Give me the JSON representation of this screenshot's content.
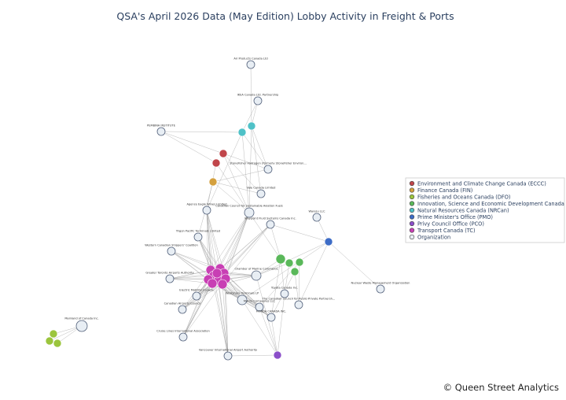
{
  "title": "QSA's April 2026 Data (May Edition) Lobby Activity in Freight & Ports",
  "footer": "© Queen Street Analytics",
  "legend": [
    {
      "label": "Environment and Climate Change Canada (ECCC)",
      "color": "#c0454a"
    },
    {
      "label": "Finance Canada (FIN)",
      "color": "#d4a03e"
    },
    {
      "label": "Fisheries and Oceans Canada (DFO)",
      "color": "#9bc53d"
    },
    {
      "label": "Innovation, Science and Economic Development Canada (ISED)",
      "color": "#5ab85a"
    },
    {
      "label": "Natural Resources Canada (NRCan)",
      "color": "#4fc1c7"
    },
    {
      "label": "Prime Minister's Office (PMO)",
      "color": "#3d6cc6"
    },
    {
      "label": "Privy Council Office (PCO)",
      "color": "#8b4fc9"
    },
    {
      "label": "Transport Canada (TC)",
      "color": "#c83fb4"
    },
    {
      "label": "Organization",
      "color": "#e8eef4"
    }
  ],
  "nodes": [
    {
      "label": "Air Products Canada Ltd"
    },
    {
      "label": "IKEA Canada Ltd. Partnership"
    },
    {
      "label": "PEMBINA INSTITUTE"
    },
    {
      "label": "StoneFisher Hydrogen (formerly StoneFisher Environ..."
    },
    {
      "label": "Vale Canada Limited"
    },
    {
      "label": "Agence Eagle Wines Limited"
    },
    {
      "label": "Canadian Council for Sustainable Aviation Fuels"
    },
    {
      "label": "Waypoint Fluid Systems Canada Inc."
    },
    {
      "label": "Waresu LLC"
    },
    {
      "label": "Trigon Pacific Terminals Limited"
    },
    {
      "label": "Western Canadian Shippers' Coalition"
    },
    {
      "label": "Greater Toronto Airports Authority"
    },
    {
      "label": "Chamber of Marine Commerce"
    },
    {
      "label": "Electric Mobility Canada"
    },
    {
      "label": "Toyota Canada Inc."
    },
    {
      "label": "Canadian Airports Council"
    },
    {
      "label": "Westshore Terminals LP"
    },
    {
      "label": "Matrix Companies LLC"
    },
    {
      "label": "The Canadian Council for Public-Private Partnersh..."
    },
    {
      "label": "HONDA CANADA INC."
    },
    {
      "label": "Cruise Lines International Association"
    },
    {
      "label": "Vancouver International Airport Authority"
    },
    {
      "label": "Nuclear Waste Management Organization"
    },
    {
      "label": "Mainland of Canada Inc."
    }
  ]
}
